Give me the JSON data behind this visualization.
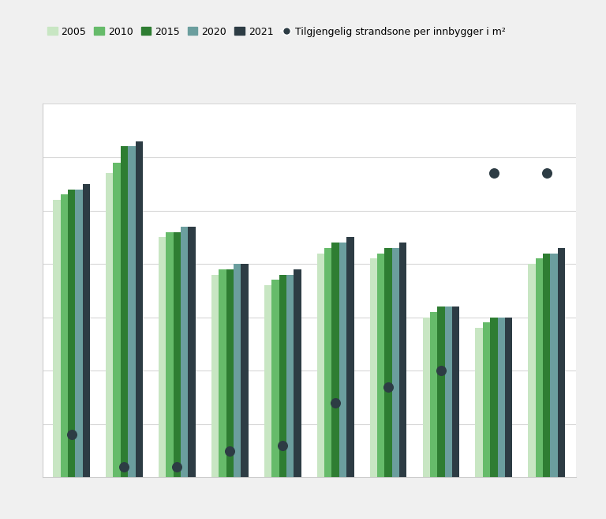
{
  "bar_series": {
    "2005": [
      52,
      57,
      45,
      38,
      36,
      42,
      41,
      30,
      28,
      40
    ],
    "2010": [
      53,
      59,
      46,
      39,
      37,
      43,
      42,
      31,
      29,
      41
    ],
    "2015": [
      54,
      62,
      46,
      39,
      38,
      44,
      43,
      32,
      30,
      42
    ],
    "2020": [
      54,
      62,
      47,
      40,
      38,
      44,
      43,
      32,
      30,
      42
    ],
    "2021": [
      55,
      63,
      47,
      40,
      39,
      45,
      44,
      32,
      30,
      43
    ]
  },
  "dot_series": [
    8,
    2,
    2,
    5,
    6,
    14,
    17,
    20,
    57,
    57
  ],
  "bar_colors": {
    "2005": "#c8e6c3",
    "2010": "#66bb6a",
    "2015": "#2e7d32",
    "2020": "#6b9e9e",
    "2021": "#2d3c44"
  },
  "dot_color": "#2d3c44",
  "ylim": [
    0,
    70
  ],
  "n_groups": 10,
  "legend_labels": [
    "2005",
    "2010",
    "2015",
    "2020",
    "2021",
    "Tilgjengelig strandsone per innbygger i m²"
  ],
  "background_color": "#f0f0f0",
  "plot_background": "#ffffff",
  "grid_color": "#d8d8d8",
  "chart_border_color": "#cccccc"
}
